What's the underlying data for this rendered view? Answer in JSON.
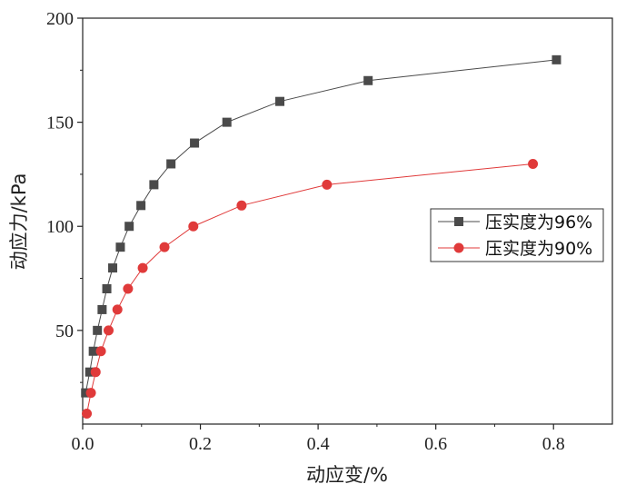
{
  "chart_data": {
    "type": "scatter",
    "xlabel": "动应变/%",
    "ylabel": "动应力/kPa",
    "xlim": [
      0.0,
      0.9
    ],
    "ylim": [
      5,
      200
    ],
    "xticks": [
      0.0,
      0.2,
      0.4,
      0.6,
      0.8
    ],
    "xtick_labels": [
      "0.0",
      "0.2",
      "0.4",
      "0.6",
      "0.8"
    ],
    "yticks": [
      50,
      100,
      150,
      200
    ],
    "ytick_labels": [
      "50",
      "100",
      "150",
      "200"
    ],
    "grid": false,
    "legend_position": "right",
    "series": [
      {
        "name": "压实度为96%",
        "color": "#4a4a4a",
        "marker": "square",
        "x": [
          0.005,
          0.012,
          0.018,
          0.025,
          0.033,
          0.041,
          0.051,
          0.064,
          0.079,
          0.099,
          0.121,
          0.15,
          0.19,
          0.245,
          0.335,
          0.485,
          0.805
        ],
        "y": [
          20,
          30,
          40,
          50,
          60,
          70,
          80,
          90,
          100,
          110,
          120,
          130,
          140,
          150,
          160,
          170,
          180
        ]
      },
      {
        "name": "压实度为90%",
        "color": "#e03a3a",
        "marker": "circle",
        "x": [
          0.007,
          0.014,
          0.022,
          0.031,
          0.044,
          0.059,
          0.077,
          0.102,
          0.139,
          0.188,
          0.27,
          0.415,
          0.765
        ],
        "y": [
          10,
          20,
          30,
          40,
          50,
          60,
          70,
          80,
          90,
          100,
          110,
          120,
          130
        ]
      }
    ]
  }
}
